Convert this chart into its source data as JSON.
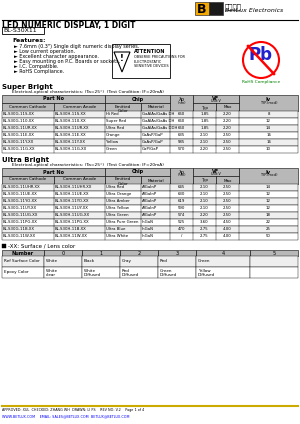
{
  "title_line1": "LED NUMERIC DISPLAY, 1 DIGIT",
  "part_number": "BL-S30X11",
  "company_name": "BetLux Electronics",
  "company_chinese": "百流光电",
  "features": [
    "7.6mm (0.3\") Single digit numeric display series.",
    "Low current operation.",
    "Excellent character appearance.",
    "Easy mounting on P.C. Boards or sockets.",
    "I.C. Compatible.",
    "RoHS Compliance."
  ],
  "sb_rows": [
    [
      "BL-S30G-11S-XX",
      "BL-S30H-11S-XX",
      "Hi Red",
      "GaAlAs/GaAs DH",
      "660",
      "1.85",
      "2.20",
      "8"
    ],
    [
      "BL-S30G-110-XX",
      "BL-S30H-110-XX",
      "Super Red",
      "GaAlAs/GaAs DH",
      "660",
      "1.85",
      "2.20",
      "12"
    ],
    [
      "BL-S30G-11UR-XX",
      "BL-S30H-11UR-XX",
      "Ultra Red",
      "GaAlAs/GaAs DDH",
      "660",
      "1.85",
      "2.20",
      "14"
    ],
    [
      "BL-S30G-11E-XX",
      "BL-S30H-11E-XX",
      "Orange",
      "GaAsP/GaP",
      "635",
      "2.10",
      "2.50",
      "16"
    ],
    [
      "BL-S30G-11Y-XX",
      "BL-S30H-11Y-XX",
      "Yellow",
      "GaAsP/GaP",
      "585",
      "2.10",
      "2.50",
      "16"
    ],
    [
      "BL-S30G-11G-XX",
      "BL-S30H-11G-XX",
      "Green",
      "GaP/GaP",
      "570",
      "2.20",
      "2.50",
      "10"
    ]
  ],
  "ub_rows": [
    [
      "BL-S30G-11UHR-XX",
      "BL-S30H-11UHR-XX",
      "Ultra Red",
      "AlGaInP",
      "645",
      "2.10",
      "2.50",
      "14"
    ],
    [
      "BL-S30G-11UE-XX",
      "BL-S30H-11UE-XX",
      "Ultra Orange",
      "AlGaInP",
      "630",
      "2.10",
      "2.50",
      "12"
    ],
    [
      "BL-S30G-11YO-XX",
      "BL-S30H-11YO-XX",
      "Ultra Amber",
      "AlGaInP",
      "619",
      "2.10",
      "2.50",
      "12"
    ],
    [
      "BL-S30G-11UY-XX",
      "BL-S30H-11UY-XX",
      "Ultra Yellow",
      "AlGaInP",
      "590",
      "2.10",
      "2.50",
      "12"
    ],
    [
      "BL-S30G-11UG-XX",
      "BL-S30H-11UG-XX",
      "Ultra Green",
      "AlGaInP",
      "574",
      "2.20",
      "2.50",
      "18"
    ],
    [
      "BL-S30G-11PG-XX",
      "BL-S30H-11PG-XX",
      "Ultra Pure Green",
      "InGaN",
      "525",
      "3.60",
      "4.50",
      "22"
    ],
    [
      "BL-S30G-11B-XX",
      "BL-S30H-11B-XX",
      "Ultra Blue",
      "InGaN",
      "470",
      "2.75",
      "4.00",
      "25"
    ],
    [
      "BL-S30G-11W-XX",
      "BL-S30H-11W-XX",
      "Ultra White",
      "InGaN",
      "/",
      "2.75",
      "4.00",
      "50"
    ]
  ],
  "surface_col_headers": [
    "Number",
    "0",
    "1",
    "2",
    "3",
    "4",
    "5"
  ],
  "surface_rows": [
    [
      "Ref Surface Color",
      "White",
      "Black",
      "Gray",
      "Red",
      "Green",
      ""
    ],
    [
      "Epoxy Color",
      "White\nclear",
      "White\nDiffused",
      "Red\nDiffused",
      "Green\nDiffused",
      "Yellow\nDiffused",
      ""
    ]
  ],
  "footer_text": "APPROVED: XUL  CHECKED: ZHANG WH  DRAWN: LI PS    REV NO: V.2    Page 1 of 4",
  "footer_url": "WWW.BETLUX.COM    EMAIL: SALES@BETLUX.COM  BETLUX@BETLUX.COM"
}
